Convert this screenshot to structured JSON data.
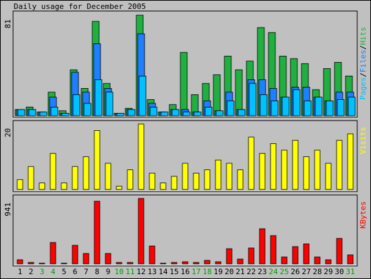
{
  "chart_data": {
    "type": "bar",
    "title": "Daily usage for December 2005",
    "categories": [
      "1",
      "2",
      "3",
      "4",
      "5",
      "6",
      "7",
      "8",
      "9",
      "10",
      "11",
      "12",
      "13",
      "14",
      "15",
      "16",
      "17",
      "18",
      "19",
      "20",
      "21",
      "22",
      "23",
      "24",
      "25",
      "26",
      "27",
      "28",
      "29",
      "30",
      "31"
    ],
    "category_colors": [
      "#000000",
      "#000000",
      "#00a000",
      "#00a000",
      "#000000",
      "#000000",
      "#000000",
      "#000000",
      "#000000",
      "#00a000",
      "#00a000",
      "#000000",
      "#000000",
      "#000000",
      "#000000",
      "#000000",
      "#00a000",
      "#00a000",
      "#000000",
      "#000000",
      "#000000",
      "#000000",
      "#000000",
      "#00a000",
      "#00a000",
      "#000000",
      "#000000",
      "#000000",
      "#000000",
      "#000000",
      "#00a000"
    ],
    "panels": [
      {
        "ylim": [
          0,
          81
        ],
        "yticks": [
          81
        ],
        "legend_separator": "/",
        "series": [
          {
            "name": "Hits",
            "color": "#20b040",
            "values": [
              5,
              7,
              3,
              19,
              4,
              37,
              22,
              76,
              26,
              2,
              6,
              81,
              13,
              3,
              9,
              51,
              17,
              26,
              33,
              48,
              37,
              44,
              71,
              67,
              48,
              46,
              42,
              21,
              38,
              43,
              32
            ]
          },
          {
            "name": "Files",
            "color": "#1e7fff",
            "values": [
              5,
              5,
              3,
              15,
              2,
              35,
              19,
              58,
              22,
              2,
              5,
              66,
              10,
              3,
              5,
              5,
              3,
              12,
              4,
              19,
              5,
              29,
              29,
              22,
              15,
              23,
              23,
              15,
              12,
              19,
              19
            ]
          },
          {
            "name": "Pages",
            "color": "#00c0ff",
            "values": [
              5,
              5,
              3,
              7,
              2,
              17,
              10,
              29,
              19,
              2,
              5,
              32,
              7,
              3,
              5,
              3,
              3,
              7,
              4,
              12,
              5,
              26,
              17,
              12,
              15,
              21,
              12,
              15,
              12,
              13,
              15
            ]
          }
        ]
      },
      {
        "ylim": [
          0,
          20
        ],
        "yticks": [
          20
        ],
        "series": [
          {
            "name": "Visits",
            "color": "#ffff00",
            "values": [
              3,
              7,
              2,
              11,
              2,
              7,
              10,
              18,
              8,
              1,
              6,
              20,
              5,
              2,
              4,
              8,
              5,
              6,
              9,
              8,
              6,
              16,
              11,
              14,
              12,
              15,
              10,
              12,
              8,
              15,
              17
            ]
          }
        ]
      },
      {
        "ylim": [
          0,
          941
        ],
        "yticks": [
          941
        ],
        "series": [
          {
            "name": "KBytes",
            "color": "#ff0000",
            "values": [
              59,
              20,
              10,
              307,
              10,
              267,
              149,
              901,
              149,
              20,
              20,
              941,
              257,
              10,
              20,
              30,
              20,
              50,
              30,
              218,
              69,
              228,
              505,
              406,
              99,
              248,
              287,
              99,
              59,
              366,
              129
            ]
          }
        ]
      }
    ]
  }
}
